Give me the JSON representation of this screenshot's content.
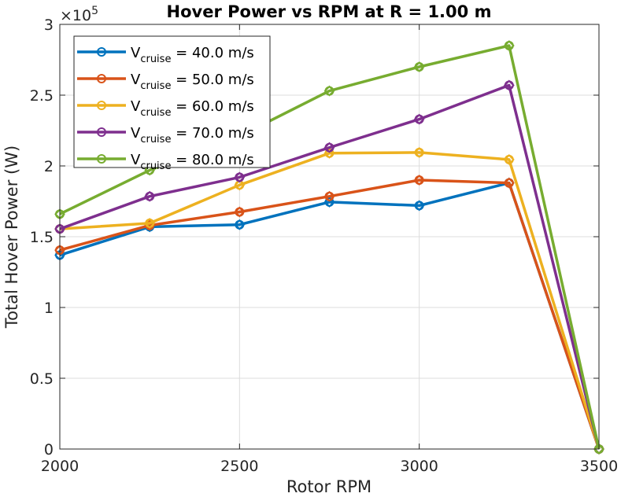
{
  "chart_data": {
    "type": "line",
    "title": "Hover Power vs RPM at R = 1.00 m",
    "xlabel": "Rotor RPM",
    "ylabel": "Total Hover Power (W)",
    "y_exponent_label": "×10",
    "y_exponent_power": "5",
    "y_multiplier": 100000,
    "xlim": [
      2000,
      3500
    ],
    "ylim": [
      0,
      300000
    ],
    "x_ticks": [
      2000,
      2500,
      3000,
      3500
    ],
    "x_tick_labels": [
      "2000",
      "2500",
      "3000",
      "3500"
    ],
    "y_ticks": [
      0,
      50000,
      100000,
      150000,
      200000,
      250000,
      300000
    ],
    "y_tick_labels": [
      "0",
      "0.5",
      "1",
      "1.5",
      "2",
      "2.5",
      "3"
    ],
    "grid": true,
    "legend_placement": "top-left",
    "x": [
      2000,
      2250,
      2500,
      2750,
      3000,
      3250,
      3500
    ],
    "series": [
      {
        "legend_main": "V",
        "legend_sub": "cruise",
        "legend_rest": " = 40.0 m/s",
        "color": "#0072BD",
        "values": [
          137000,
          157000,
          158500,
          174500,
          172000,
          188000,
          0
        ]
      },
      {
        "legend_main": "V",
        "legend_sub": "cruise",
        "legend_rest": " = 50.0 m/s",
        "color": "#D95319",
        "values": [
          140500,
          158000,
          167500,
          178500,
          190000,
          188000,
          0
        ]
      },
      {
        "legend_main": "V",
        "legend_sub": "cruise",
        "legend_rest": " = 60.0 m/s",
        "color": "#EDB120",
        "values": [
          155500,
          159500,
          186500,
          209000,
          209500,
          204500,
          0
        ]
      },
      {
        "legend_main": "V",
        "legend_sub": "cruise",
        "legend_rest": " = 70.0 m/s",
        "color": "#7E2F8E",
        "values": [
          155500,
          178500,
          192000,
          213000,
          233000,
          257000,
          0
        ]
      },
      {
        "legend_main": "V",
        "legend_sub": "cruise",
        "legend_rest": " = 80.0 m/s",
        "color": "#77AC30",
        "values": [
          166000,
          197000,
          221000,
          253000,
          270000,
          285000,
          0
        ]
      }
    ]
  }
}
